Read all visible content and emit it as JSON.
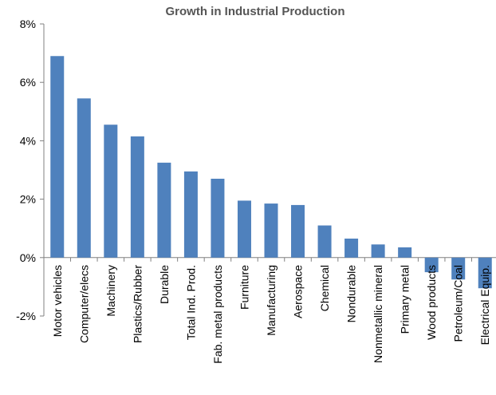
{
  "chart_data": {
    "type": "bar",
    "title": "Growth in Industrial Production",
    "xlabel": "",
    "ylabel": "",
    "ylim": [
      -2,
      8
    ],
    "y_ticks": [
      "-2%",
      "0%",
      "2%",
      "4%",
      "6%",
      "8%"
    ],
    "y_tick_values": [
      -2,
      0,
      2,
      4,
      6,
      8
    ],
    "grid": false,
    "legend": "none",
    "bar_color": "#4f81bd",
    "categories": [
      "Motor vehicles",
      "Computer/elecs",
      "Machinery",
      "Plastics/Rubber",
      "Durable",
      "Total Ind. Prod.",
      "Fab. metal products",
      "Furniture",
      "Manufacturing",
      "Aerospace",
      "Chemical",
      "Nondurable",
      "Nonmetallic mineral",
      "Primary metal",
      "Wood products",
      "Petroleum/Coal",
      "Electrical Equip."
    ],
    "values": [
      6.9,
      5.45,
      4.55,
      4.15,
      3.25,
      2.95,
      2.7,
      1.95,
      1.85,
      1.8,
      1.1,
      0.65,
      0.45,
      0.35,
      -0.5,
      -0.75,
      -1.05
    ]
  }
}
